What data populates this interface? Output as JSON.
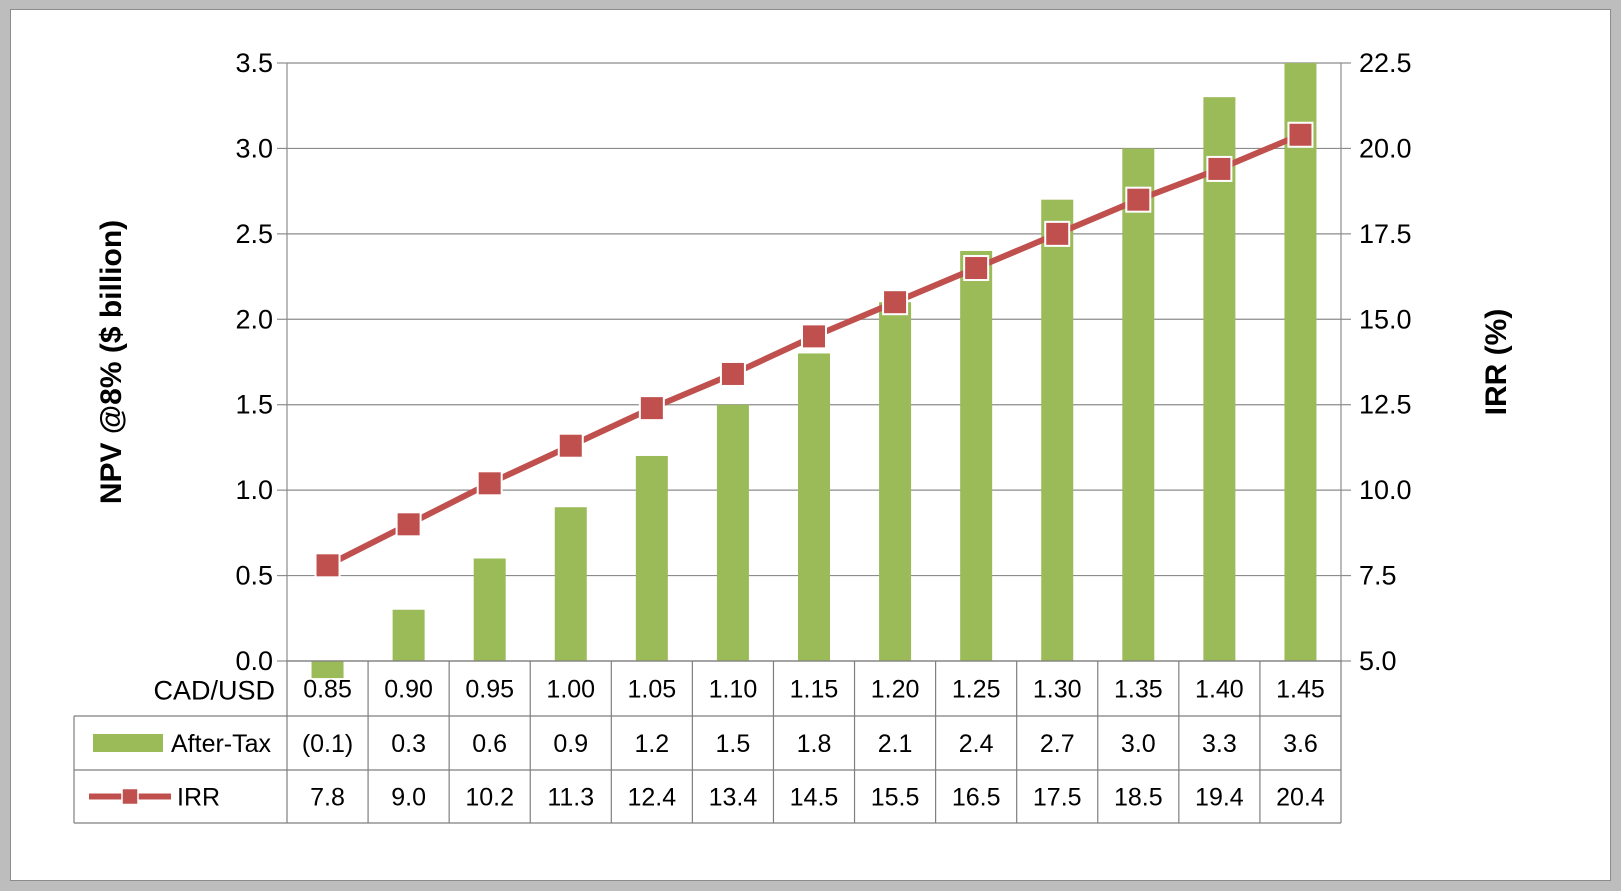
{
  "chart_data": {
    "type": "bar",
    "xlabel": "CAD/USD",
    "categories": [
      "0.85",
      "0.90",
      "0.95",
      "1.00",
      "1.05",
      "1.10",
      "1.15",
      "1.20",
      "1.25",
      "1.30",
      "1.35",
      "1.40",
      "1.45"
    ],
    "ylabel": "NPV @8% ($ billion)",
    "y2label": "IRR (%)",
    "ylim": [
      0,
      3.5
    ],
    "y2lim": [
      5,
      22.5
    ],
    "yticks": [
      "0.0",
      "0.5",
      "1.0",
      "1.5",
      "2.0",
      "2.5",
      "3.0",
      "3.5"
    ],
    "y2ticks": [
      "5.0",
      "7.5",
      "10.0",
      "12.5",
      "15.0",
      "17.5",
      "20.0",
      "22.5"
    ],
    "grid": true,
    "series": [
      {
        "name": "After-Tax",
        "type": "bar",
        "axis": "left",
        "color": "#9bbb59",
        "values": [
          -0.1,
          0.3,
          0.6,
          0.9,
          1.2,
          1.5,
          1.8,
          2.1,
          2.4,
          2.7,
          3.0,
          3.3,
          3.6
        ],
        "labels": [
          "(0.1)",
          "0.3",
          "0.6",
          "0.9",
          "1.2",
          "1.5",
          "1.8",
          "2.1",
          "2.4",
          "2.7",
          "3.0",
          "3.3",
          "3.6"
        ]
      },
      {
        "name": "IRR",
        "type": "line",
        "axis": "right",
        "color": "#c0504d",
        "values": [
          7.8,
          9.0,
          10.2,
          11.3,
          12.4,
          13.4,
          14.5,
          15.5,
          16.5,
          17.5,
          18.5,
          19.4,
          20.4
        ],
        "labels": [
          "7.8",
          "9.0",
          "10.2",
          "11.3",
          "12.4",
          "13.4",
          "14.5",
          "15.5",
          "16.5",
          "17.5",
          "18.5",
          "19.4",
          "20.4"
        ]
      }
    ]
  }
}
